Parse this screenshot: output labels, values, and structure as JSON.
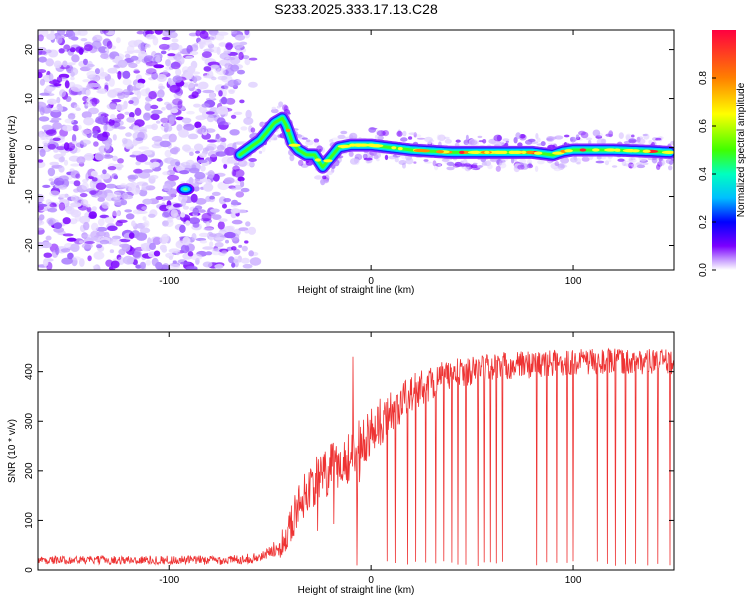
{
  "title": "S233.2025.333.17.13.C28",
  "chart_data": [
    {
      "type": "heatmap",
      "xlabel": "Height of straight line (km)",
      "ylabel": "Frequency (Hz)",
      "xlim": [
        -165,
        150
      ],
      "ylim": [
        -25,
        24
      ],
      "x_ticks": [
        -100,
        0,
        100
      ],
      "y_ticks": [
        -20,
        -10,
        0,
        10,
        20
      ],
      "colorbar": {
        "label": "Normalized spectral amplitude",
        "range": [
          0,
          1
        ],
        "ticks": [
          0.0,
          0.2,
          0.4,
          0.6,
          0.8
        ],
        "colormap": [
          "#ffffff",
          "#7b00ff",
          "#0000ff",
          "#00bfff",
          "#00ffc0",
          "#40ff00",
          "#ffff00",
          "#ff8000",
          "#ff0040"
        ]
      },
      "noise_region_x": [
        -165,
        -60
      ],
      "ridge": {
        "x": [
          -65,
          -55,
          -48,
          -44,
          -42,
          -39,
          -36,
          -32,
          -28,
          -24,
          -20,
          -16,
          -10,
          0,
          10,
          20,
          40,
          60,
          80,
          90,
          95,
          100,
          120,
          140,
          148
        ],
        "y": [
          -1.5,
          1.5,
          5.0,
          6.0,
          4.5,
          1.0,
          -0.5,
          -1.5,
          -1.5,
          -4.0,
          -2.0,
          0.0,
          0.5,
          0.5,
          0.0,
          -0.5,
          -1.0,
          -1.0,
          -1.0,
          -1.5,
          -0.8,
          -0.5,
          -0.5,
          -0.8,
          -1.0
        ]
      },
      "isolated_blob": {
        "x": -92,
        "y": -8.5
      }
    },
    {
      "type": "line",
      "xlabel": "Height of straight line (km)",
      "ylabel": "SNR (10 * v/v)",
      "xlim": [
        -165,
        150
      ],
      "ylim": [
        0,
        480
      ],
      "x_ticks": [
        -100,
        0,
        100
      ],
      "y_ticks": [
        0,
        100,
        200,
        300,
        400
      ],
      "color": "#ee3333",
      "envelope": {
        "x": [
          -165,
          -70,
          -55,
          -45,
          -40,
          -35,
          -30,
          -20,
          -10,
          0,
          10,
          20,
          30,
          40,
          60,
          80,
          100,
          120,
          150
        ],
        "y": [
          20,
          20,
          25,
          50,
          90,
          140,
          170,
          200,
          230,
          280,
          320,
          355,
          380,
          395,
          410,
          415,
          420,
          420,
          420
        ]
      },
      "noise_amplitude": {
        "x": [
          -165,
          -50,
          -40,
          -20,
          0,
          40,
          150
        ],
        "y": [
          8,
          10,
          40,
          55,
          50,
          30,
          25
        ]
      },
      "dropouts_x": [
        -7,
        8,
        12,
        18,
        22,
        27,
        32,
        36,
        40,
        43,
        47,
        53,
        56,
        59,
        62,
        65,
        82,
        87,
        92,
        97,
        100,
        112,
        117,
        121,
        126,
        131,
        137,
        142,
        148
      ],
      "dropout_min": 8,
      "spike": {
        "x": -9,
        "y": 430
      }
    }
  ]
}
